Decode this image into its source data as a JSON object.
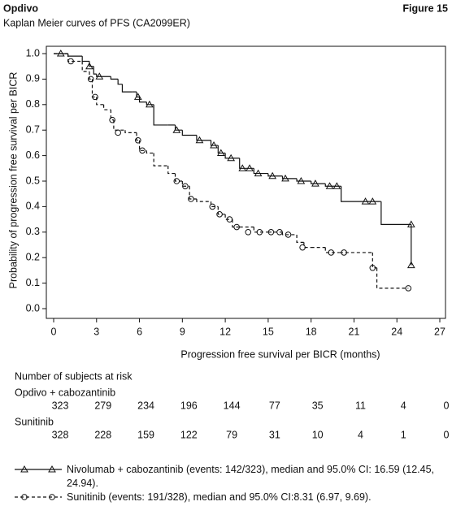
{
  "chart_data": {
    "type": "km",
    "header": "Opdivo",
    "figure_label": "Figure 15",
    "title": "Kaplan Meier curves of PFS (CA2099ER)",
    "xlabel": "Progression free survival per BICR (months)",
    "ylabel": "Probability of progression free survival per BICR",
    "xlim": [
      0,
      27
    ],
    "ylim": [
      0,
      1
    ],
    "xticks": [
      0,
      3,
      6,
      9,
      12,
      15,
      18,
      21,
      24,
      27
    ],
    "yticks": [
      {
        "value": 0,
        "label": "0.0"
      },
      0.1,
      0.2,
      0.3,
      0.4,
      0.5,
      0.6,
      0.7,
      0.8,
      0.9,
      {
        "value": 1,
        "label": "1.0"
      }
    ],
    "series": [
      {
        "name": "Nivolumab + cabozantinib (events: 142/323), median and 95.0% CI: 16.59 (12.45, 24.94).",
        "color": "#111111",
        "line_style": "solid",
        "marker": "triangle",
        "x": [
          0,
          1,
          2,
          2.5,
          2.8,
          3,
          4,
          4.5,
          4.8,
          5.5,
          5.8,
          6,
          6.5,
          7,
          8,
          8.5,
          9,
          10,
          11,
          11.5,
          12,
          13,
          14,
          15,
          16,
          17,
          18,
          19,
          20,
          20.1,
          22.8,
          22.9,
          25,
          25
        ],
        "values": [
          1.0,
          0.99,
          0.97,
          0.95,
          0.92,
          0.91,
          0.9,
          0.88,
          0.85,
          0.85,
          0.83,
          0.81,
          0.8,
          0.72,
          0.72,
          0.7,
          0.68,
          0.66,
          0.64,
          0.61,
          0.59,
          0.55,
          0.53,
          0.52,
          0.51,
          0.5,
          0.49,
          0.48,
          0.48,
          0.42,
          0.42,
          0.33,
          0.33,
          0.17
        ],
        "censored_x": [
          0.5,
          2.5,
          3.2,
          5.9,
          6.7,
          8.6,
          10.2,
          11.2,
          11.7,
          12.4,
          13.2,
          13.7,
          14.3,
          15.3,
          16.2,
          17.3,
          18.3,
          19.3,
          19.8,
          21.8,
          22.3,
          25,
          25
        ],
        "censored_values": [
          1.0,
          0.95,
          0.91,
          0.83,
          0.8,
          0.7,
          0.66,
          0.64,
          0.61,
          0.59,
          0.55,
          0.55,
          0.53,
          0.52,
          0.51,
          0.5,
          0.49,
          0.48,
          0.48,
          0.42,
          0.42,
          0.33,
          0.17
        ],
        "at_risk_label": "Opdivo + cabozantinib",
        "at_risk": [
          323,
          279,
          234,
          196,
          144,
          77,
          35,
          11,
          4,
          0
        ]
      },
      {
        "name": "Sunitinib (events: 191/328), median and 95.0% CI:8.31 (6.97, 9.69).",
        "color": "#111111",
        "line_style": "dashed",
        "marker": "circle",
        "x": [
          0,
          1,
          2,
          2.5,
          2.7,
          3,
          3.5,
          4,
          4.2,
          5,
          5.8,
          6,
          6.5,
          7,
          8,
          8.5,
          9,
          9.5,
          10,
          11,
          11.5,
          12,
          12.5,
          13,
          14,
          15,
          16,
          17,
          17.5,
          18,
          19,
          20,
          22,
          22.3,
          22.6,
          24.8
        ],
        "values": [
          1.0,
          0.97,
          0.93,
          0.9,
          0.83,
          0.8,
          0.78,
          0.74,
          0.7,
          0.69,
          0.66,
          0.62,
          0.61,
          0.56,
          0.53,
          0.5,
          0.48,
          0.43,
          0.42,
          0.4,
          0.37,
          0.35,
          0.32,
          0.32,
          0.3,
          0.3,
          0.29,
          0.26,
          0.24,
          0.24,
          0.22,
          0.22,
          0.22,
          0.16,
          0.08,
          0.08
        ],
        "censored_x": [
          1.2,
          2.6,
          2.9,
          4.1,
          4.5,
          5.9,
          6.2,
          8.6,
          9.2,
          9.6,
          11.1,
          11.6,
          12.3,
          12.8,
          13.6,
          14.4,
          15.2,
          15.8,
          16.4,
          17.4,
          19.4,
          20.3,
          22.3,
          24.8
        ],
        "censored_values": [
          0.97,
          0.9,
          0.83,
          0.74,
          0.69,
          0.66,
          0.62,
          0.5,
          0.48,
          0.43,
          0.4,
          0.37,
          0.35,
          0.32,
          0.3,
          0.3,
          0.3,
          0.3,
          0.29,
          0.24,
          0.22,
          0.22,
          0.16,
          0.08
        ],
        "at_risk_label": "Sunitinib",
        "at_risk": [
          328,
          228,
          159,
          122,
          79,
          31,
          10,
          4,
          1,
          0
        ]
      }
    ],
    "at_risk_title": "Number of subjects at risk"
  }
}
